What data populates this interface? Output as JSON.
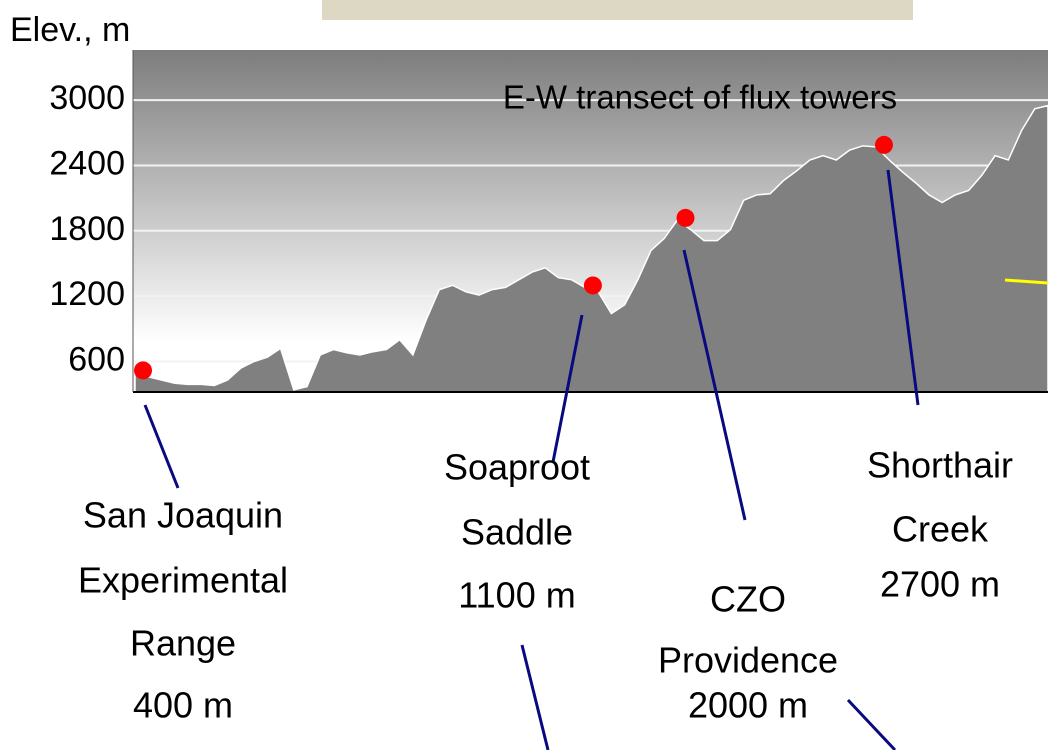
{
  "chart_data": {
    "type": "area",
    "title": "E-W transect of flux towers",
    "y_label": "Elev., m",
    "color": "#808080",
    "marker_color": "#ff0000",
    "grid": true,
    "ylim": [
      320,
      3460
    ],
    "yticks": [
      600,
      1200,
      1800,
      2400,
      3000
    ],
    "values": [
      500,
      460,
      430,
      400,
      390,
      390,
      380,
      430,
      540,
      600,
      640,
      720,
      340,
      370,
      660,
      710,
      680,
      660,
      690,
      710,
      800,
      660,
      980,
      1260,
      1300,
      1240,
      1210,
      1260,
      1280,
      1350,
      1420,
      1460,
      1370,
      1350,
      1280,
      1240,
      1040,
      1120,
      1350,
      1620,
      1730,
      1900,
      1810,
      1710,
      1710,
      1810,
      2080,
      2130,
      2140,
      2260,
      2350,
      2450,
      2490,
      2450,
      2540,
      2580,
      2570,
      2450,
      2340,
      2240,
      2130,
      2060,
      2130,
      2170,
      2310,
      2490,
      2450,
      2720,
      2920,
      2950
    ],
    "annotations": [
      {
        "lines": [
          "San Joaquin",
          "Experimental",
          "Range",
          "400 m"
        ]
      },
      {
        "lines": [
          "Soaproot",
          "Saddle",
          "1100 m"
        ]
      },
      {
        "lines": [
          "CZO",
          "Providence",
          "2000 m"
        ]
      },
      {
        "lines": [
          "Shorthair",
          "Creek",
          "2700 m"
        ]
      }
    ]
  }
}
